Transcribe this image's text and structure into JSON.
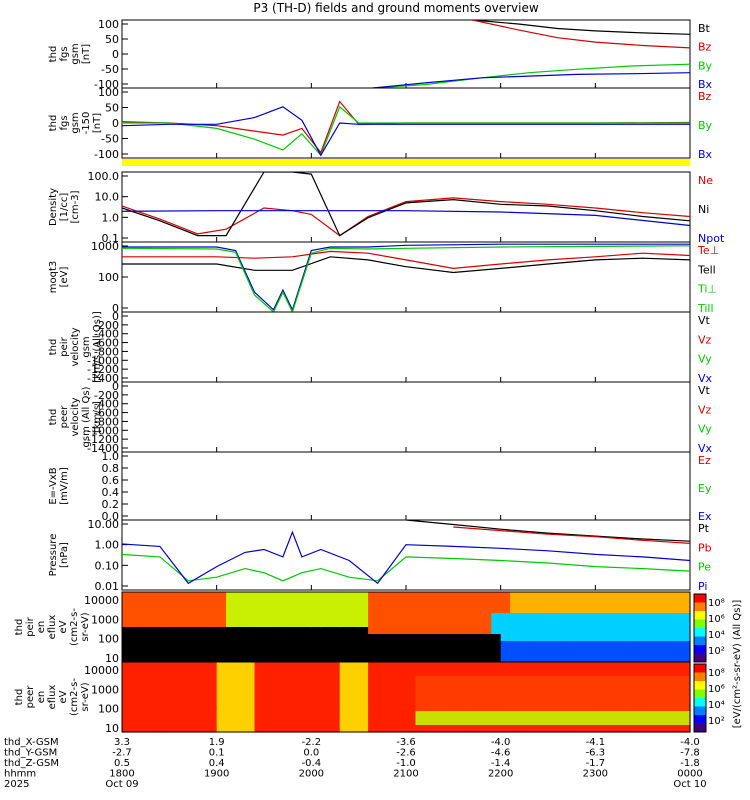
{
  "title": "P3 (TH-D) fields and ground moments overview",
  "colors": {
    "black": "#000000",
    "red": "#d40000",
    "green": "#00c800",
    "blue": "#0000d0",
    "yellow": "#ffff00",
    "spec_low": "#c80000",
    "spec_mid": "#ff6400",
    "spec_high": "#ffc800"
  },
  "chart_data": {
    "type": "line",
    "x_range_hhmm": [
      "1800",
      "0000"
    ],
    "x_ticks": [
      "1800",
      "1900",
      "2000",
      "2100",
      "2200",
      "2300",
      "0000"
    ],
    "panels": [
      {
        "id": "fgs",
        "ylabel": [
          "thd",
          "fgs",
          "gsm",
          "[nT]"
        ],
        "ylim": [
          -100,
          100
        ],
        "yticks": [
          "100",
          "50",
          "0",
          "-50",
          "-100"
        ],
        "legend": [
          {
            "label": "Bt",
            "color": "#000000"
          },
          {
            "label": "Bz",
            "color": "#d40000"
          },
          {
            "label": "By",
            "color": "#00c800"
          },
          {
            "label": "Bx",
            "color": "#0000d0"
          }
        ],
        "series": [
          {
            "name": "Bt",
            "color": "#000000",
            "x": [
              3.7,
              4.2,
              4.6,
              5.0,
              5.5,
              6.0
            ],
            "y": [
              100,
              88,
              75,
              68,
              62,
              58
            ]
          },
          {
            "name": "Bz",
            "color": "#d40000",
            "x": [
              3.7,
              4.2,
              4.6,
              5.0,
              5.5,
              6.0
            ],
            "y": [
              100,
              70,
              48,
              35,
              25,
              18
            ]
          },
          {
            "name": "By",
            "color": "#00c800",
            "x": [
              2.65,
              3.2,
              3.8,
              4.3,
              4.8,
              5.4,
              6.0
            ],
            "y": [
              -100,
              -90,
              -70,
              -55,
              -45,
              -35,
              -30
            ]
          },
          {
            "name": "Bx",
            "color": "#0000d0",
            "x": [
              2.65,
              3.2,
              3.8,
              4.3,
              4.8,
              5.4,
              6.0
            ],
            "y": [
              -100,
              -85,
              -70,
              -65,
              -60,
              -58,
              -55
            ]
          }
        ]
      },
      {
        "id": "fgs_ext",
        "ylabel": [
          "thd",
          "fgs",
          "gsm",
          "-150",
          "[nT]"
        ],
        "ylim": [
          -130,
          130
        ],
        "yticks": [
          "100",
          "50",
          "0",
          "-50",
          "-100"
        ],
        "legend": [
          {
            "label": "Bz",
            "color": "#d40000"
          },
          {
            "label": "By",
            "color": "#00c800"
          },
          {
            "label": "Bx",
            "color": "#0000d0"
          }
        ],
        "series": [
          {
            "name": "Bz",
            "color": "#d40000",
            "x": [
              0,
              0.5,
              1.0,
              1.4,
              1.7,
              1.9,
              2.1,
              2.3,
              2.5,
              3.0,
              4.0,
              5.0,
              6.0
            ],
            "y": [
              5,
              0,
              -10,
              -30,
              -45,
              -20,
              -110,
              80,
              -5,
              0,
              0,
              0,
              2
            ]
          },
          {
            "name": "By",
            "color": "#00c800",
            "x": [
              0,
              0.5,
              1.0,
              1.4,
              1.7,
              1.9,
              2.1,
              2.3,
              2.5,
              3.0,
              4.0,
              5.0,
              6.0
            ],
            "y": [
              0,
              0,
              -20,
              -60,
              -100,
              -40,
              -120,
              60,
              0,
              0,
              0,
              0,
              0
            ]
          },
          {
            "name": "Bx",
            "color": "#0000d0",
            "x": [
              0,
              0.5,
              1.0,
              1.4,
              1.7,
              1.9,
              2.1,
              2.3,
              2.5,
              3.0,
              4.0,
              5.0,
              6.0
            ],
            "y": [
              -10,
              -5,
              -5,
              20,
              60,
              10,
              -120,
              0,
              -5,
              -5,
              -5,
              -5,
              -5
            ]
          }
        ]
      },
      {
        "id": "density",
        "ylabel": [
          "Density",
          "[1/cc]",
          "[cm-3]"
        ],
        "ylim_log": [
          0.05,
          100
        ],
        "yticks": [
          "100.0",
          "10.0",
          "1.0",
          "0.1"
        ],
        "legend": [
          {
            "label": "Ne",
            "color": "#d40000"
          },
          {
            "label": "Ni",
            "color": "#000000"
          },
          {
            "label": "Npot",
            "color": "#0000d0"
          }
        ],
        "series": [
          {
            "name": "Ne",
            "color": "#d40000",
            "x": [
              0,
              0.4,
              0.8,
              1.1,
              1.5,
              1.8,
              2.0,
              2.3,
              2.6,
              3.0,
              3.5,
              4.0,
              4.5,
              5.0,
              5.5,
              6.0
            ],
            "y": [
              2.5,
              0.6,
              0.12,
              0.2,
              2,
              1.5,
              1.0,
              0.1,
              0.8,
              4,
              6,
              4,
              3,
              2,
              1.2,
              0.8
            ]
          },
          {
            "name": "Ni",
            "color": "#000000",
            "x": [
              0,
              0.4,
              0.8,
              1.1,
              1.5,
              1.8,
              2.0,
              2.3,
              2.6,
              3.0,
              3.5,
              4.0,
              4.5,
              5.0,
              5.5,
              6.0
            ],
            "y": [
              2,
              0.5,
              0.1,
              0.1,
              100,
              100,
              80,
              0.1,
              0.7,
              3.5,
              5,
              3,
              2.5,
              1.5,
              0.8,
              0.5
            ]
          },
          {
            "name": "Npot",
            "color": "#0000d0",
            "x": [
              0,
              1.0,
              2.0,
              3.0,
              4.0,
              5.0,
              6.0
            ],
            "y": [
              1.4,
              1.5,
              1.5,
              1.5,
              1.3,
              0.9,
              0.3
            ]
          }
        ]
      },
      {
        "id": "temp",
        "ylabel": [
          "moqt3",
          "[eV]"
        ],
        "ylim_log": [
          10,
          3000
        ],
        "yticks": [
          "1000",
          "100",
          "0"
        ],
        "legend": [
          {
            "label": "Te⊥",
            "color": "#d40000"
          },
          {
            "label": "Tell",
            "color": "#000000"
          },
          {
            "label": "Ti⊥",
            "color": "#00c800"
          },
          {
            "label": "Till",
            "color": "#00c800"
          }
        ],
        "series": [
          {
            "name": "Te⊥",
            "color": "#d40000",
            "x": [
              0,
              1.0,
              1.4,
              1.8,
              2.2,
              2.6,
              3.0,
              3.5,
              4.0,
              4.5,
              5.0,
              5.5,
              6.0
            ],
            "y": [
              900,
              900,
              800,
              900,
              1400,
              1200,
              700,
              350,
              500,
              700,
              900,
              1200,
              1000
            ]
          },
          {
            "name": "Tell",
            "color": "#000000",
            "x": [
              0,
              1.0,
              1.4,
              1.8,
              2.2,
              2.6,
              3.0,
              3.5,
              4.0,
              4.5,
              5.0,
              5.5,
              6.0
            ],
            "y": [
              500,
              500,
              300,
              300,
              900,
              700,
              400,
              250,
              350,
              500,
              700,
              800,
              700
            ]
          },
          {
            "name": "Ti⊥",
            "color": "#0000d0",
            "x": [
              0,
              1.0,
              1.2,
              1.4,
              1.6,
              1.7,
              1.8,
              2.0,
              2.2,
              2.6,
              3.0,
              4.0,
              5.0,
              6.0
            ],
            "y": [
              2000,
              2000,
              1500,
              50,
              12,
              60,
              12,
              1500,
              2000,
              2000,
              2300,
              2500,
              2500,
              2500
            ]
          },
          {
            "name": "Till",
            "color": "#00c800",
            "x": [
              0,
              1.0,
              1.2,
              1.4,
              1.6,
              1.7,
              1.8,
              2.0,
              2.2,
              2.6,
              3.0,
              4.0,
              5.0,
              6.0
            ],
            "y": [
              1800,
              1700,
              1300,
              40,
              10,
              50,
              10,
              1200,
              1800,
              1700,
              1800,
              2000,
              2100,
              2200
            ]
          }
        ]
      },
      {
        "id": "peir_vel",
        "ylabel": [
          "thd",
          "peir",
          "velocity",
          "gsm",
          "[km/s (All Qs)]"
        ],
        "ylim": [
          -1400,
          0
        ],
        "yticks": [
          "0",
          "-200",
          "-400",
          "-600",
          "-800",
          "-1000",
          "-1200",
          "-1400"
        ],
        "legend": [
          {
            "label": "Vt",
            "color": "#000000"
          },
          {
            "label": "Vz",
            "color": "#d40000"
          },
          {
            "label": "Vy",
            "color": "#00c800"
          },
          {
            "label": "Vx",
            "color": "#0000d0"
          }
        ],
        "series": []
      },
      {
        "id": "peer_vel",
        "ylabel": [
          "thd",
          "peer",
          "velocity",
          "gsm (All Qs)",
          "[km/s]"
        ],
        "ylim": [
          -1400,
          0
        ],
        "yticks": [
          "0",
          "-200",
          "-400",
          "-600",
          "-800",
          "-1000",
          "-1200",
          "-1400"
        ],
        "legend": [
          {
            "label": "Vt",
            "color": "#000000"
          },
          {
            "label": "Vz",
            "color": "#d40000"
          },
          {
            "label": "Vy",
            "color": "#00c800"
          },
          {
            "label": "Vx",
            "color": "#0000d0"
          }
        ],
        "series": []
      },
      {
        "id": "efield",
        "ylabel": [
          "E=-VxB",
          "[mV/m]"
        ],
        "ylim": [
          0,
          1
        ],
        "yticks": [
          "1.0",
          "0.8",
          "0.6",
          "0.4",
          "0.2",
          "0.0"
        ],
        "legend": [
          {
            "label": "Ez",
            "color": "#d40000"
          },
          {
            "label": "Ey",
            "color": "#00c800"
          },
          {
            "label": "Ex",
            "color": "#0000d0"
          }
        ],
        "series": []
      },
      {
        "id": "pressure",
        "ylabel": [
          "Pressure",
          "[nPa]"
        ],
        "ylim_log": [
          0.007,
          20
        ],
        "yticks": [
          "10.00",
          "1.00",
          "0.10",
          "0.01"
        ],
        "legend": [
          {
            "label": "Pt",
            "color": "#000000"
          },
          {
            "label": "Pb",
            "color": "#d40000"
          },
          {
            "label": "Pe",
            "color": "#00c800"
          },
          {
            "label": "Pi",
            "color": "#0000d0"
          }
        ],
        "series": [
          {
            "name": "Pt",
            "color": "#000000",
            "x": [
              3.0,
              3.5,
              4.0,
              4.5,
              5.0,
              5.5,
              6.0
            ],
            "y": [
              20,
              12,
              7,
              4.5,
              3.2,
              2.3,
              1.8
            ]
          },
          {
            "name": "Pb",
            "color": "#d40000",
            "x": [
              3.5,
              4.0,
              4.5,
              5.0,
              5.5,
              6.0
            ],
            "y": [
              9,
              6,
              4,
              3,
              2,
              1.4
            ]
          },
          {
            "name": "Pe",
            "color": "#00c800",
            "x": [
              0,
              0.4,
              0.7,
              1.0,
              1.3,
              1.5,
              1.7,
              1.9,
              2.1,
              2.4,
              2.7,
              3.0,
              3.5,
              4.0,
              4.5,
              5.0,
              5.5,
              6.0
            ],
            "y": [
              0.4,
              0.3,
              0.02,
              0.03,
              0.08,
              0.05,
              0.02,
              0.05,
              0.08,
              0.03,
              0.02,
              0.3,
              0.25,
              0.2,
              0.15,
              0.1,
              0.08,
              0.06
            ]
          },
          {
            "name": "Pi",
            "color": "#0000d0",
            "x": [
              0,
              0.4,
              0.7,
              1.0,
              1.3,
              1.5,
              1.7,
              1.8,
              1.9,
              2.1,
              2.4,
              2.7,
              3.0,
              3.5,
              4.0,
              4.5,
              5.0,
              5.5,
              6.0
            ],
            "y": [
              1.3,
              1.0,
              0.015,
              0.1,
              0.5,
              0.7,
              0.3,
              5,
              0.3,
              0.7,
              0.2,
              0.015,
              1.2,
              1.0,
              0.8,
              0.6,
              0.4,
              0.3,
              0.2
            ]
          }
        ]
      }
    ],
    "spectrograms": [
      {
        "id": "peir_eflux",
        "ylabel": [
          "thd",
          "peir",
          "en",
          "eflux",
          "eV",
          "(cm2-s-",
          "sr-eV)"
        ],
        "yticks": [
          "10000",
          "1000",
          "100",
          "10"
        ]
      },
      {
        "id": "peer_eflux",
        "ylabel": [
          "thd",
          "peer",
          "en",
          "eflux",
          "eV",
          "(cm2-s-",
          "sr-eV)"
        ],
        "yticks": [
          "10000",
          "1000",
          "100",
          "10"
        ]
      }
    ],
    "colorbar": {
      "label": "[eV/(cm²-s-sr-eV) (All Qs)]",
      "ticks": [
        "10⁸",
        "10⁶",
        "10⁴",
        "10²"
      ]
    },
    "ephemeris": [
      {
        "label": "thd_X-GSM",
        "values": [
          "3.3",
          "1.9",
          "-2.2",
          "-3.6",
          "-4.0",
          "-4.1",
          "-4.0"
        ]
      },
      {
        "label": "thd_Y-GSM",
        "values": [
          "-2.7",
          "0.1",
          "0.0",
          "-2.6",
          "-4.6",
          "-6.3",
          "-7.8"
        ]
      },
      {
        "label": "thd_Z-GSM",
        "values": [
          "0.5",
          "0.4",
          "-0.4",
          "-1.0",
          "-1.4",
          "-1.7",
          "-1.8"
        ]
      },
      {
        "label": "hhmm",
        "values": [
          "1800",
          "1900",
          "2000",
          "2100",
          "2200",
          "2300",
          "0000"
        ]
      },
      {
        "label": "2025",
        "values": [
          "Oct 09",
          "",
          "",
          "",
          "",
          "",
          "Oct 10"
        ]
      }
    ]
  }
}
